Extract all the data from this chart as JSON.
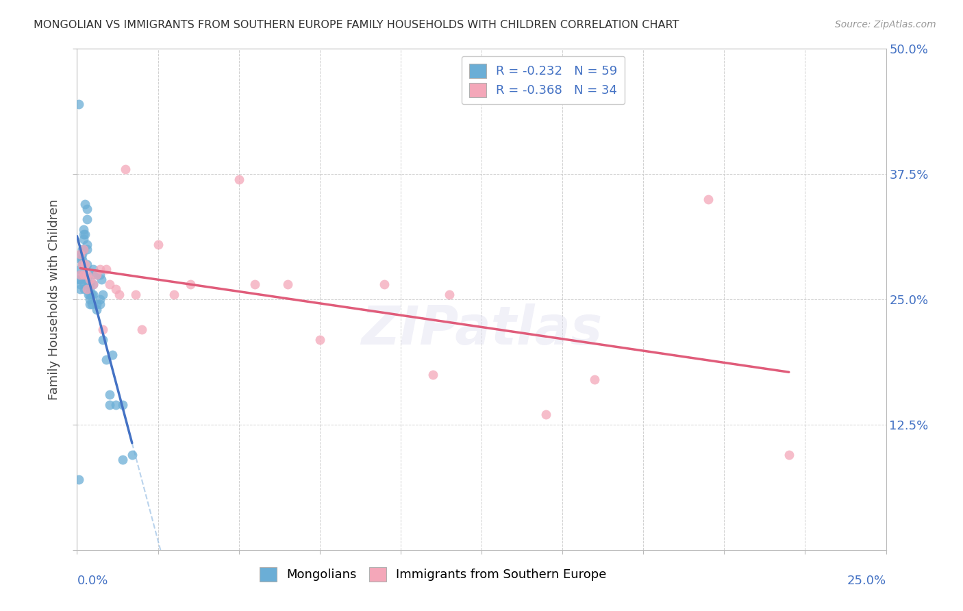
{
  "title": "MONGOLIAN VS IMMIGRANTS FROM SOUTHERN EUROPE FAMILY HOUSEHOLDS WITH CHILDREN CORRELATION CHART",
  "source": "Source: ZipAtlas.com",
  "ylabel": "Family Households with Children",
  "R_mongolians": -0.232,
  "N_mongolians": 59,
  "R_immigrants": -0.368,
  "N_immigrants": 34,
  "color_mongolians": "#6baed6",
  "color_immigrants": "#f4a7b9",
  "color_axis_text": "#4472c4",
  "color_reg_mongolians": "#4472c4",
  "color_reg_immigrants": "#e05c7a",
  "color_dash": "#a8c8e8",
  "xlim": [
    0,
    0.25
  ],
  "ylim": [
    0,
    0.5
  ],
  "ytick_vals": [
    0.0,
    0.125,
    0.25,
    0.375,
    0.5
  ],
  "ytick_labels": [
    "",
    "12.5%",
    "25.0%",
    "37.5%",
    "50.0%"
  ],
  "xtick_vals": [
    0.0,
    0.025,
    0.05,
    0.075,
    0.1,
    0.125,
    0.15,
    0.175,
    0.2,
    0.225,
    0.25
  ],
  "legend_labels": [
    "Mongolians",
    "Immigrants from Southern Europe"
  ],
  "background": "#ffffff",
  "grid_color": "#d0d0d0",
  "scatter_mongolians_x": [
    0.0005,
    0.0005,
    0.0008,
    0.001,
    0.001,
    0.001,
    0.001,
    0.001,
    0.0012,
    0.0012,
    0.0015,
    0.0015,
    0.0015,
    0.0015,
    0.002,
    0.002,
    0.002,
    0.002,
    0.002,
    0.0022,
    0.0022,
    0.0025,
    0.0025,
    0.003,
    0.003,
    0.003,
    0.003,
    0.003,
    0.003,
    0.0035,
    0.0035,
    0.004,
    0.004,
    0.004,
    0.004,
    0.004,
    0.0045,
    0.0045,
    0.005,
    0.005,
    0.005,
    0.005,
    0.006,
    0.006,
    0.006,
    0.007,
    0.007,
    0.007,
    0.0075,
    0.008,
    0.008,
    0.009,
    0.01,
    0.01,
    0.011,
    0.012,
    0.014,
    0.014,
    0.017
  ],
  "scatter_mongolians_y": [
    0.445,
    0.07,
    0.27,
    0.28,
    0.275,
    0.27,
    0.265,
    0.26,
    0.295,
    0.29,
    0.3,
    0.295,
    0.29,
    0.285,
    0.32,
    0.315,
    0.31,
    0.3,
    0.275,
    0.265,
    0.26,
    0.345,
    0.315,
    0.34,
    0.33,
    0.305,
    0.3,
    0.285,
    0.27,
    0.265,
    0.255,
    0.265,
    0.26,
    0.255,
    0.25,
    0.245,
    0.255,
    0.245,
    0.28,
    0.275,
    0.265,
    0.255,
    0.275,
    0.245,
    0.24,
    0.275,
    0.25,
    0.245,
    0.27,
    0.255,
    0.21,
    0.19,
    0.155,
    0.145,
    0.195,
    0.145,
    0.145,
    0.09,
    0.095
  ],
  "scatter_immigrants_x": [
    0.001,
    0.001,
    0.0015,
    0.002,
    0.002,
    0.0025,
    0.003,
    0.003,
    0.004,
    0.005,
    0.006,
    0.007,
    0.008,
    0.009,
    0.01,
    0.012,
    0.013,
    0.015,
    0.018,
    0.02,
    0.025,
    0.03,
    0.035,
    0.05,
    0.055,
    0.065,
    0.075,
    0.095,
    0.11,
    0.115,
    0.145,
    0.16,
    0.195,
    0.22
  ],
  "scatter_immigrants_y": [
    0.295,
    0.275,
    0.285,
    0.3,
    0.275,
    0.285,
    0.275,
    0.26,
    0.27,
    0.265,
    0.275,
    0.28,
    0.22,
    0.28,
    0.265,
    0.26,
    0.255,
    0.38,
    0.255,
    0.22,
    0.305,
    0.255,
    0.265,
    0.37,
    0.265,
    0.265,
    0.21,
    0.265,
    0.175,
    0.255,
    0.135,
    0.17,
    0.35,
    0.095
  ],
  "watermark": "ZIPatlas"
}
